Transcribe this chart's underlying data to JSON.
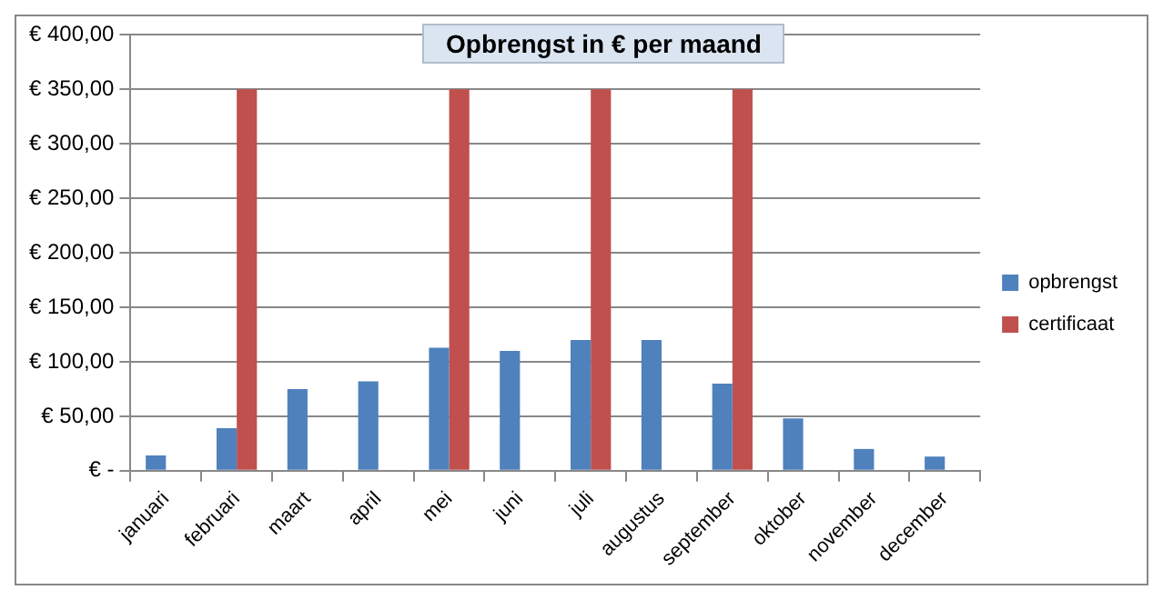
{
  "chart_data": {
    "type": "bar",
    "title": "Opbrengst in € per maand",
    "categories": [
      "januari",
      "februari",
      "maart",
      "april",
      "mei",
      "juni",
      "juli",
      "augustus",
      "september",
      "oktober",
      "november",
      "december"
    ],
    "series": [
      {
        "name": "opbrengst",
        "color": "#4f81bd",
        "values": [
          14,
          39,
          75,
          82,
          113,
          110,
          120,
          120,
          80,
          48,
          20,
          13
        ]
      },
      {
        "name": "certificaat",
        "color": "#c0504d",
        "values": [
          null,
          350,
          null,
          null,
          350,
          null,
          350,
          null,
          350,
          null,
          null,
          null
        ]
      }
    ],
    "ylim": [
      0,
      400
    ],
    "yticks": [
      {
        "value": 0,
        "label": "€ -"
      },
      {
        "value": 50,
        "label": "€ 50,00"
      },
      {
        "value": 100,
        "label": "€ 100,00"
      },
      {
        "value": 150,
        "label": "€ 150,00"
      },
      {
        "value": 200,
        "label": "€ 200,00"
      },
      {
        "value": 250,
        "label": "€ 250,00"
      },
      {
        "value": 300,
        "label": "€ 300,00"
      },
      {
        "value": 350,
        "label": "€ 350,00"
      },
      {
        "value": 400,
        "label": "€ 400,00"
      }
    ],
    "grid": "y",
    "legend": "right"
  }
}
